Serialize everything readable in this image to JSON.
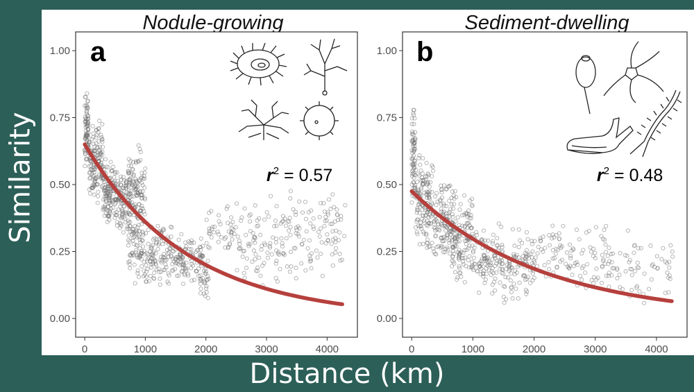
{
  "slide": {
    "y_axis_title": "Similarity",
    "x_axis_title": "Distance (km)"
  },
  "colors": {
    "background": "#2c5f58",
    "points": "#6b6b6b",
    "fit": "#b5403d",
    "panel_border": "#333333"
  },
  "icons": {
    "panel_a": [
      "sea-anemone-icon",
      "branching-stalk-icon",
      "branched-sponge-icon",
      "spiny-sphere-icon"
    ],
    "panel_b": [
      "stalked-sponge-icon",
      "brittle-star-icon",
      "sea-cucumber-icon",
      "polychaete-worm-icon"
    ]
  },
  "chart_data": [
    {
      "type": "scatter",
      "panel_label": "a",
      "title": "Nodule-growing",
      "xlabel": "Distance (km)",
      "ylabel": "Similarity",
      "xlim": [
        -150,
        4500
      ],
      "ylim": [
        -0.07,
        1.07
      ],
      "x_ticks": [
        0,
        1000,
        2000,
        3000,
        4000
      ],
      "y_ticks": [
        "0.00",
        "0.25",
        "0.50",
        "0.75",
        "1.00"
      ],
      "r2_label": "r",
      "r2_value": " = 0.57",
      "fit": {
        "model": "exponential decay",
        "a": 0.65,
        "b": 0.00059,
        "x_range": [
          0,
          4250
        ]
      },
      "point_clusters": [
        {
          "x": [
            0,
            60
          ],
          "y": [
            0.56,
            0.86
          ],
          "n": 70
        },
        {
          "x": [
            60,
            300
          ],
          "y": [
            0.42,
            0.75
          ],
          "n": 140
        },
        {
          "x": [
            300,
            520
          ],
          "y": [
            0.33,
            0.62
          ],
          "n": 120
        },
        {
          "x": [
            520,
            760
          ],
          "y": [
            0.3,
            0.56
          ],
          "n": 110
        },
        {
          "x": [
            720,
            1000
          ],
          "y": [
            0.26,
            0.66
          ],
          "n": 130
        },
        {
          "x": [
            720,
            1000
          ],
          "y": [
            0.12,
            0.36
          ],
          "n": 60
        },
        {
          "x": [
            1000,
            1450
          ],
          "y": [
            0.1,
            0.38
          ],
          "n": 110
        },
        {
          "x": [
            1450,
            1950
          ],
          "y": [
            0.12,
            0.33
          ],
          "n": 110
        },
        {
          "x": [
            1900,
            2050
          ],
          "y": [
            0.05,
            0.22
          ],
          "n": 25
        },
        {
          "x": [
            2000,
            2500
          ],
          "y": [
            0.18,
            0.45
          ],
          "n": 45
        },
        {
          "x": [
            2500,
            3000
          ],
          "y": [
            0.1,
            0.45
          ],
          "n": 55
        },
        {
          "x": [
            3000,
            3500
          ],
          "y": [
            0.08,
            0.5
          ],
          "n": 60
        },
        {
          "x": [
            3500,
            4300
          ],
          "y": [
            0.15,
            0.48
          ],
          "n": 80
        }
      ]
    },
    {
      "type": "scatter",
      "panel_label": "b",
      "title": "Sediment-dwelling",
      "xlabel": "Distance (km)",
      "ylabel": "Similarity",
      "xlim": [
        -150,
        4500
      ],
      "ylim": [
        -0.07,
        1.07
      ],
      "x_ticks": [
        0,
        1000,
        2000,
        3000,
        4000
      ],
      "y_ticks": [
        "0.00",
        "0.25",
        "0.50",
        "0.75",
        "1.00"
      ],
      "r2_label": "r",
      "r2_value": " = 0.48",
      "fit": {
        "model": "exponential decay",
        "a": 0.475,
        "b": 0.00047,
        "x_range": [
          0,
          4250
        ]
      },
      "point_clusters": [
        {
          "x": [
            0,
            60
          ],
          "y": [
            0.4,
            0.8
          ],
          "n": 70
        },
        {
          "x": [
            60,
            350
          ],
          "y": [
            0.25,
            0.62
          ],
          "n": 140
        },
        {
          "x": [
            350,
            700
          ],
          "y": [
            0.2,
            0.52
          ],
          "n": 130
        },
        {
          "x": [
            650,
            1000
          ],
          "y": [
            0.12,
            0.48
          ],
          "n": 130
        },
        {
          "x": [
            1000,
            1500
          ],
          "y": [
            0.08,
            0.36
          ],
          "n": 110
        },
        {
          "x": [
            1500,
            2000
          ],
          "y": [
            0.05,
            0.34
          ],
          "n": 90
        },
        {
          "x": [
            2000,
            2600
          ],
          "y": [
            0.12,
            0.38
          ],
          "n": 55
        },
        {
          "x": [
            2600,
            3200
          ],
          "y": [
            0.08,
            0.36
          ],
          "n": 50
        },
        {
          "x": [
            3200,
            4300
          ],
          "y": [
            0.04,
            0.34
          ],
          "n": 70
        }
      ]
    }
  ]
}
